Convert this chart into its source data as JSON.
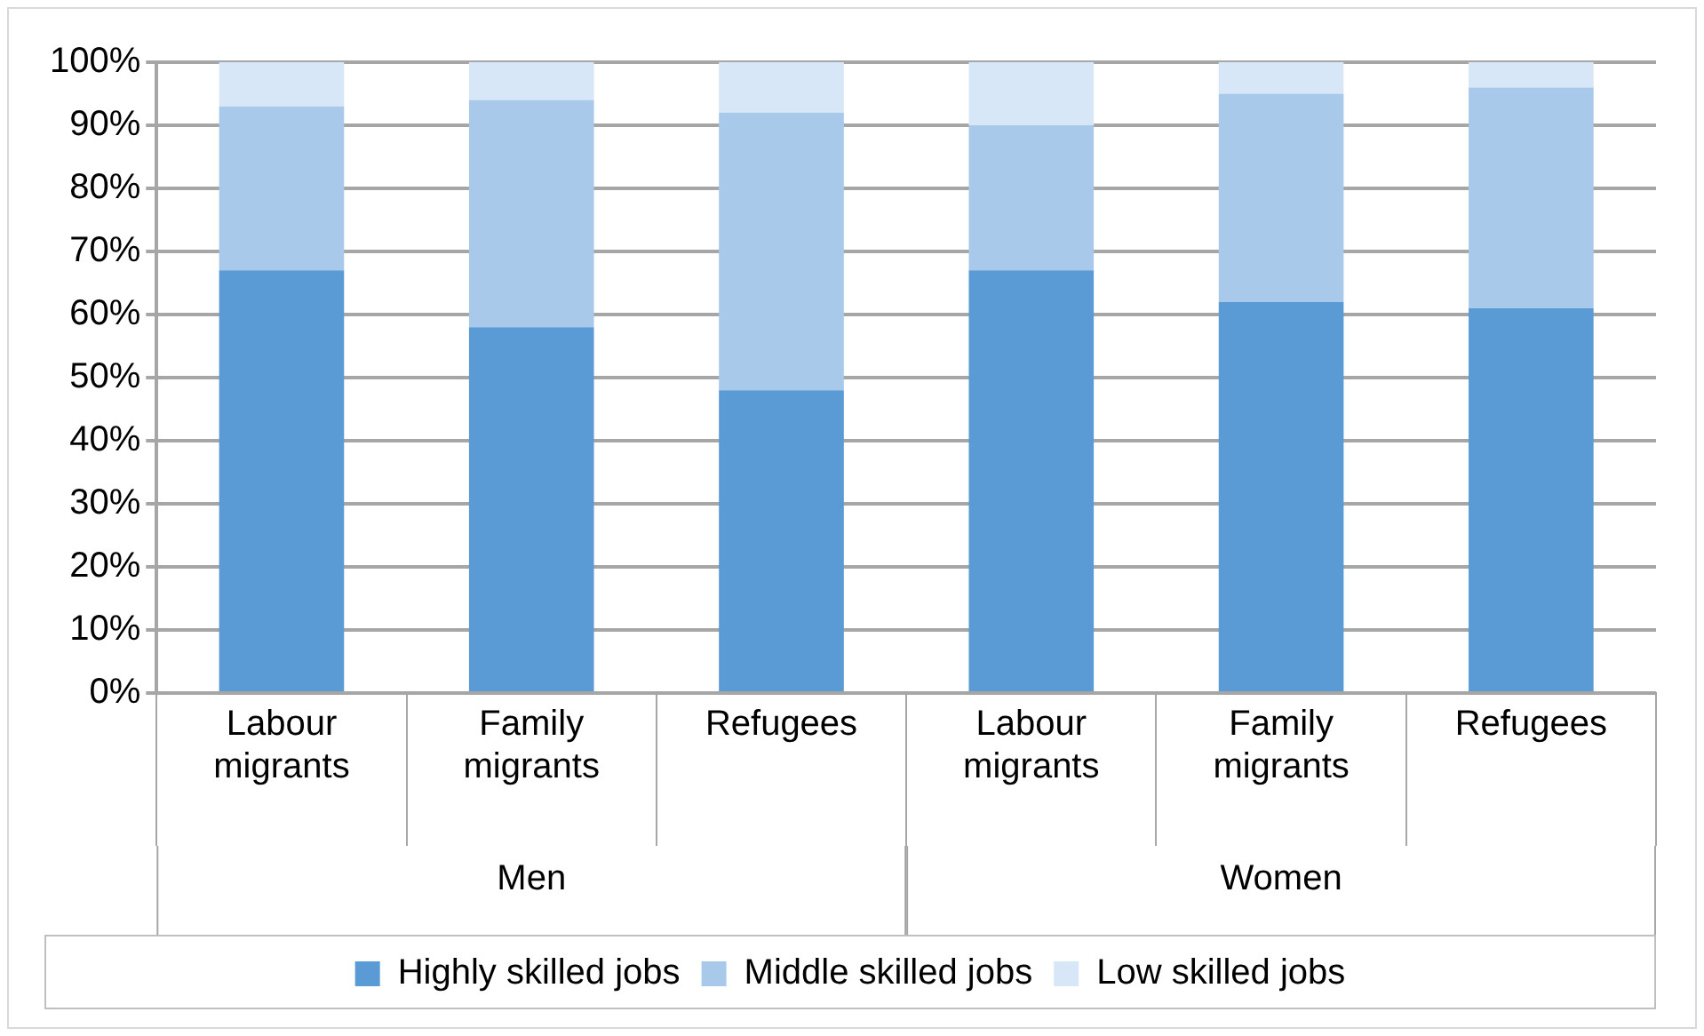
{
  "chart_data": {
    "type": "bar",
    "stacked": true,
    "categories": [
      "Labour migrants",
      "Family migrants",
      "Refugees",
      "Labour migrants",
      "Family migrants",
      "Refugees"
    ],
    "annotations": [
      "Men",
      "Women"
    ],
    "series": [
      {
        "name": "Highly skilled jobs",
        "color": "#5b9bd5",
        "values": [
          67,
          58,
          48,
          67,
          62,
          61
        ]
      },
      {
        "name": "Middle skilled jobs",
        "color": "#a9c9ea",
        "values": [
          26,
          36,
          44,
          23,
          33,
          35
        ]
      },
      {
        "name": "Low skilled jobs",
        "color": "#d7e7f7",
        "values": [
          7,
          6,
          8,
          10,
          5,
          4
        ]
      }
    ],
    "ylim": [
      0,
      100
    ],
    "yticks": [
      {
        "value": 0,
        "label": "0%"
      },
      {
        "value": 10,
        "label": "10%"
      },
      {
        "value": 20,
        "label": "20%"
      },
      {
        "value": 30,
        "label": "30%"
      },
      {
        "value": 40,
        "label": "40%"
      },
      {
        "value": 50,
        "label": "50%"
      },
      {
        "value": 60,
        "label": "60%"
      },
      {
        "value": 70,
        "label": "70%"
      },
      {
        "value": 80,
        "label": "80%"
      },
      {
        "value": 90,
        "label": "90%"
      },
      {
        "value": 100,
        "label": "100%"
      }
    ],
    "grid": "y",
    "legend": "bottom"
  }
}
